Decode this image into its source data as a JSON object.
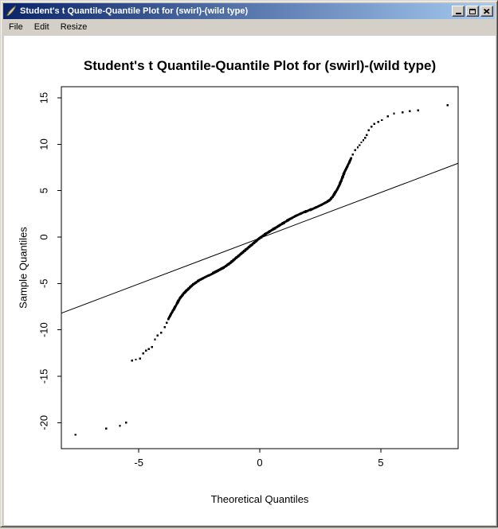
{
  "window": {
    "title": "Student's t Quantile-Quantile Plot for (swirl)-(wild type)",
    "icon": "r-graphics-quill-icon"
  },
  "titlebar_buttons": {
    "minimize": "minimize-icon",
    "maximize": "maximize-icon",
    "close": "close-icon"
  },
  "menu": {
    "items": [
      "File",
      "Edit",
      "Resize"
    ]
  },
  "colors": {
    "titlebar_gradient_start": "#0A246A",
    "titlebar_gradient_end": "#A6CAF0",
    "chrome": "#D4D0C8",
    "plot_background": "#FFFFFF",
    "data_color": "#000000"
  },
  "chart_data": {
    "type": "scatter",
    "title": "Student's t Quantile-Quantile Plot for (swirl)-(wild type)",
    "xlabel": "Theoretical Quantiles",
    "ylabel": "Sample Quantiles",
    "xlim": [
      -8.2,
      8.2
    ],
    "ylim": [
      -22.8,
      16.2
    ],
    "xticks": [
      -5,
      0,
      5
    ],
    "yticks": [
      15,
      10,
      5,
      0,
      -5,
      -10,
      -15,
      -20
    ],
    "grid": false,
    "legend": null,
    "reference_line": {
      "x1": -8.2,
      "y1": -8.2,
      "x2": 8.2,
      "y2": 7.95
    },
    "series": [
      {
        "name": "lower-outliers",
        "render": "dots",
        "points": [
          [
            -7.62,
            -21.3
          ],
          [
            -6.35,
            -20.65
          ],
          [
            -5.78,
            -20.35
          ],
          [
            -5.52,
            -20.0
          ]
        ]
      },
      {
        "name": "lower-tail",
        "render": "dots",
        "points": [
          [
            -5.28,
            -13.3
          ],
          [
            -5.12,
            -13.2
          ],
          [
            -4.95,
            -13.1
          ],
          [
            -4.82,
            -12.55
          ],
          [
            -4.7,
            -12.25
          ],
          [
            -4.58,
            -12.05
          ],
          [
            -4.45,
            -11.85
          ],
          [
            -4.33,
            -11.05
          ],
          [
            -4.23,
            -10.6
          ],
          [
            -4.08,
            -10.3
          ],
          [
            -3.93,
            -9.7
          ],
          [
            -3.84,
            -9.25
          ]
        ]
      },
      {
        "name": "main-curve",
        "render": "dense",
        "points": [
          [
            -3.78,
            -8.85
          ],
          [
            -3.68,
            -8.35
          ],
          [
            -3.58,
            -7.9
          ],
          [
            -3.45,
            -7.3
          ],
          [
            -3.3,
            -6.6
          ],
          [
            -3.15,
            -6.1
          ],
          [
            -3.0,
            -5.7
          ],
          [
            -2.75,
            -5.1
          ],
          [
            -2.5,
            -4.65
          ],
          [
            -2.25,
            -4.3
          ],
          [
            -2.0,
            -4.0
          ],
          [
            -1.75,
            -3.65
          ],
          [
            -1.5,
            -3.3
          ],
          [
            -1.25,
            -2.85
          ],
          [
            -1.0,
            -2.3
          ],
          [
            -0.75,
            -1.75
          ],
          [
            -0.5,
            -1.2
          ],
          [
            -0.25,
            -0.65
          ],
          [
            0.0,
            -0.1
          ],
          [
            0.25,
            0.35
          ],
          [
            0.5,
            0.75
          ],
          [
            0.75,
            1.15
          ],
          [
            1.0,
            1.55
          ],
          [
            1.25,
            1.95
          ],
          [
            1.5,
            2.3
          ],
          [
            1.75,
            2.6
          ],
          [
            2.0,
            2.85
          ],
          [
            2.25,
            3.1
          ],
          [
            2.5,
            3.4
          ],
          [
            2.75,
            3.75
          ],
          [
            2.9,
            4.0
          ],
          [
            3.0,
            4.3
          ],
          [
            3.1,
            4.7
          ],
          [
            3.2,
            5.15
          ],
          [
            3.3,
            5.65
          ],
          [
            3.4,
            6.3
          ],
          [
            3.5,
            7.0
          ],
          [
            3.6,
            7.5
          ],
          [
            3.7,
            8.05
          ],
          [
            3.78,
            8.5
          ]
        ]
      },
      {
        "name": "upper-tail",
        "render": "dots",
        "points": [
          [
            3.85,
            8.9
          ],
          [
            3.95,
            9.35
          ],
          [
            4.05,
            9.65
          ],
          [
            4.12,
            9.9
          ],
          [
            4.2,
            10.2
          ],
          [
            4.28,
            10.45
          ],
          [
            4.35,
            10.7
          ],
          [
            4.42,
            11.0
          ],
          [
            4.5,
            11.5
          ],
          [
            4.62,
            11.9
          ],
          [
            4.73,
            12.2
          ]
        ]
      },
      {
        "name": "upper-outliers",
        "render": "dots",
        "points": [
          [
            4.9,
            12.4
          ],
          [
            5.05,
            12.6
          ],
          [
            5.3,
            13.0
          ],
          [
            5.55,
            13.3
          ],
          [
            5.9,
            13.45
          ],
          [
            6.2,
            13.55
          ],
          [
            6.55,
            13.65
          ],
          [
            7.77,
            14.2
          ]
        ]
      }
    ]
  }
}
